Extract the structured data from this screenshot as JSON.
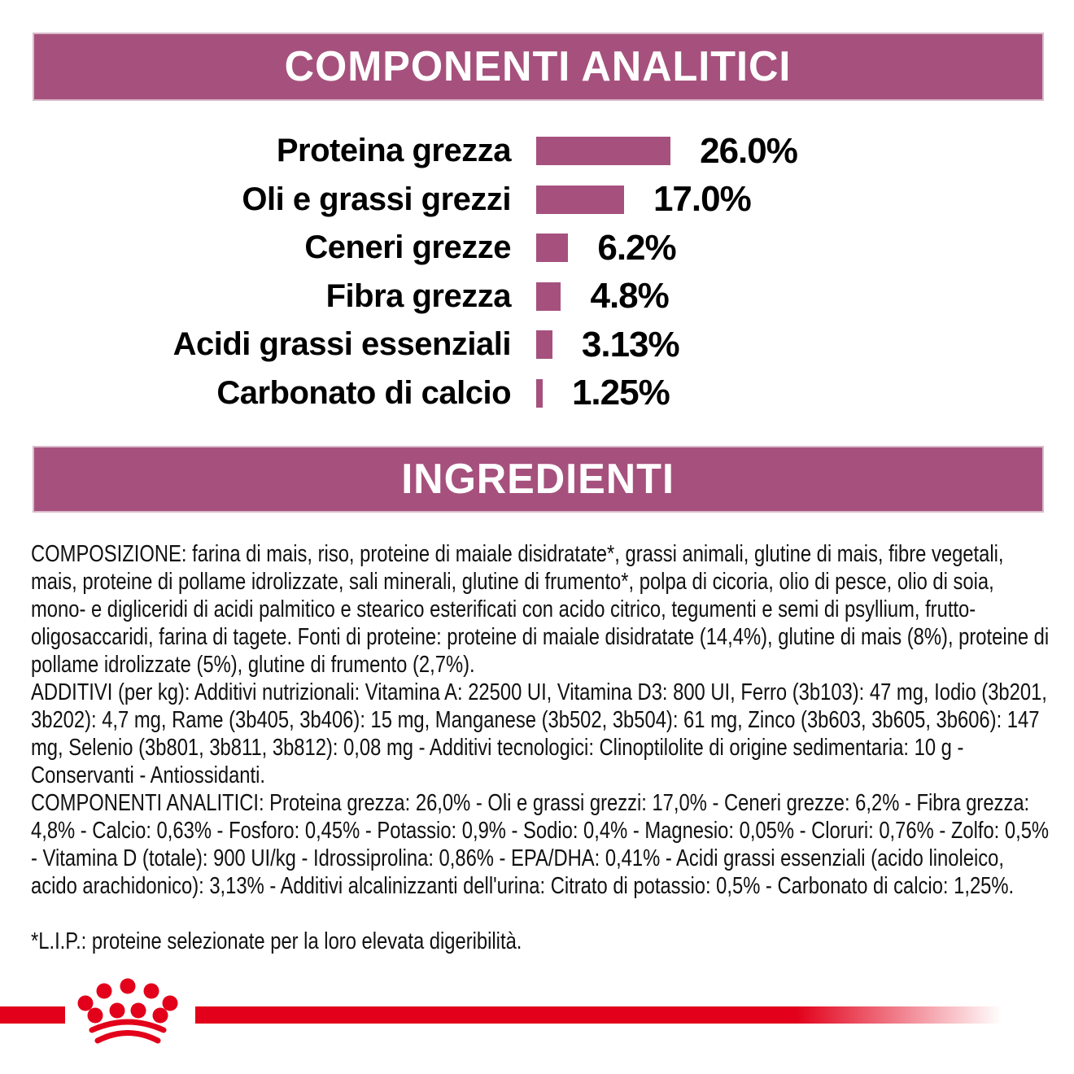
{
  "sections": {
    "analytic": {
      "title": "COMPONENTI ANALITICI"
    },
    "ingredients_header": {
      "title": "INGREDIENTI"
    },
    "ingredients": {
      "composizione": "COMPOSIZIONE: farina di mais, riso, proteine di maiale disidratate*, grassi animali, glutine di mais, fibre vegetali, mais, proteine di pollame idrolizzate, sali minerali, glutine di frumento*, polpa di cicoria, olio di pesce, olio di soia, mono- e digliceridi di acidi palmitico e stearico esterificati con acido citrico, tegumenti e semi di psyllium, frutto-oligosaccaridi, farina di tagete. Fonti di proteine: proteine di maiale disidratate (14,4%), glutine di mais (8%), proteine di pollame idrolizzate (5%), glutine di frumento (2,7%).",
      "additivi": "ADDITIVI (per kg): Additivi nutrizionali: Vitamina A: 22500 UI, Vitamina D3: 800 UI, Ferro (3b103): 47 mg, Iodio (3b201, 3b202): 4,7 mg, Rame (3b405, 3b406): 15 mg, Manganese (3b502, 3b504): 61 mg, Zinco (3b603, 3b605, 3b606): 147 mg, Selenio (3b801, 3b811, 3b812): 0,08 mg - Additivi tecnologici: Clinoptilolite di origine sedimentaria: 10 g - Conservanti - Antiossidanti.",
      "componenti_analitici": "COMPONENTI ANALITICI: Proteina grezza: 26,0% - Oli e grassi grezzi: 17,0% - Ceneri grezze: 6,2% - Fibra grezza: 4,8% - Calcio: 0,63% - Fosforo: 0,45% - Potassio: 0,9% - Sodio: 0,4% - Magnesio: 0,05% - Cloruri: 0,76% - Zolfo: 0,5% - Vitamina D (totale): 900 UI/kg - Idrossiprolina: 0,86% - EPA/DHA: 0,41% - Acidi grassi essenziali (acido linoleico, acido arachidonico): 3,13% - Additivi alcalinizzanti dell'urina: Citrato di potassio: 0,5% - Carbonato di calcio: 1,25%.",
      "footnote": "*L.I.P.: proteine selezionate per la loro elevata digeribilità."
    }
  },
  "chart_data": {
    "type": "bar",
    "orientation": "horizontal",
    "title": "COMPONENTI ANALITICI",
    "categories": [
      "Proteina grezza",
      "Oli e grassi grezzi",
      "Ceneri grezze",
      "Fibra grezza",
      "Acidi grassi essenziali",
      "Carbonato di calcio"
    ],
    "values": [
      26.0,
      17.0,
      6.2,
      4.8,
      3.13,
      1.25
    ],
    "value_labels": [
      "26.0%",
      "17.0%",
      "6.2%",
      "4.8%",
      "3.13%",
      "1.25%"
    ],
    "unit": "%",
    "xlim": [
      0,
      30
    ],
    "grid": false,
    "legend": false,
    "bar_color": "#A6517D"
  },
  "footer": {
    "logo_icon": "royal-canin-crown-icon",
    "line_color": "#E2001A"
  },
  "colors": {
    "accent_plum": "#A6517D",
    "band_border": "#D9B9CA",
    "brand_red": "#E2001A",
    "text": "#111111",
    "background": "#FFFFFF"
  }
}
